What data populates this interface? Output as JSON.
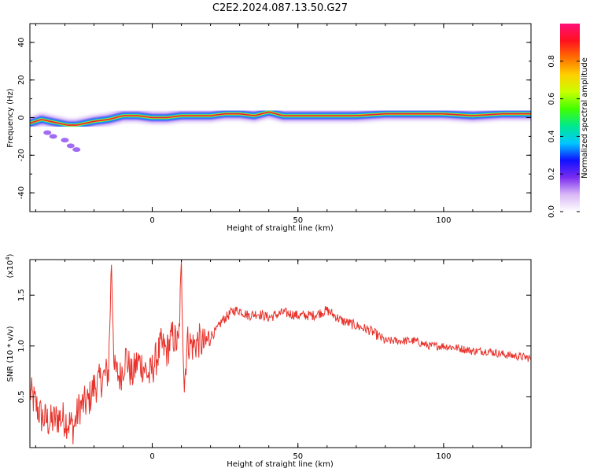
{
  "title": "C2E2.2024.087.13.50.G27",
  "colors": {
    "snr_line": "#e8322b",
    "ridge_core": "#e3203a",
    "colorbar_stops": [
      "#ffffff",
      "#d9b8f6",
      "#7a2cf0",
      "#1010ff",
      "#00c8ff",
      "#00e890",
      "#40ff00",
      "#c8ff00",
      "#ffd000",
      "#ff7000",
      "#ff1020",
      "#ff1078"
    ]
  },
  "colorbar": {
    "label": "Normalized spectral amplitude",
    "ticks": [
      "0.0",
      "0.2",
      "0.4",
      "0.6",
      "0.8"
    ]
  },
  "chart_data": [
    {
      "type": "heatmap",
      "xlabel": "Height of straight line (km)",
      "ylabel": "Frequency (Hz)",
      "xlim": [
        -42,
        130
      ],
      "ylim": [
        -50,
        50
      ],
      "xticks": [
        "0",
        "50",
        "100"
      ],
      "yticks": [
        "-40",
        "-20",
        "0",
        "20",
        "40"
      ],
      "ridge": {
        "x": [
          -42,
          -38,
          -35,
          -32,
          -29,
          -26,
          -23,
          -20,
          -15,
          -10,
          -5,
          0,
          5,
          10,
          15,
          20,
          25,
          30,
          35,
          40,
          45,
          50,
          55,
          60,
          65,
          70,
          80,
          90,
          100,
          110,
          120,
          130
        ],
        "y": [
          -3,
          -1,
          -2,
          -3,
          -4,
          -4,
          -3,
          -2,
          -1,
          1,
          1,
          0,
          0,
          1,
          1,
          1,
          2,
          2,
          1,
          3,
          1,
          1,
          1,
          1,
          1,
          1,
          2,
          2,
          2,
          1,
          2,
          2
        ]
      },
      "scatter_cluster": {
        "x": [
          -36,
          -34,
          -30,
          -28,
          -26
        ],
        "y": [
          -8,
          -10,
          -12,
          -15,
          -17
        ]
      }
    },
    {
      "type": "line",
      "xlabel": "Height of straight line (km)",
      "ylabel": "SNR (10 * v/v)",
      "y_multiplier": "(x10",
      "y_multiplier_exp": "4",
      "xlim": [
        -42,
        130
      ],
      "ylim": [
        0,
        1.85
      ],
      "xticks": [
        "0",
        "50",
        "100"
      ],
      "yticks": [
        "0.5",
        "1.0",
        "1.5"
      ],
      "y_units": "x10^4",
      "series": [
        {
          "x": [
            -42,
            -38,
            -35,
            -32,
            -30,
            -27,
            -25,
            -22,
            -20,
            -18,
            -15,
            -14,
            -13,
            -11,
            -9,
            -7,
            -5,
            -3,
            -1,
            1,
            3,
            5,
            7,
            9,
            10,
            11,
            12,
            14,
            16,
            18,
            20,
            22,
            24,
            26,
            28,
            30,
            33,
            36,
            40,
            45,
            50,
            55,
            60,
            65,
            70,
            75,
            80,
            85,
            90,
            95,
            100,
            105,
            110,
            115,
            120,
            125,
            130
          ],
          "y": [
            0.55,
            0.3,
            0.25,
            0.3,
            0.28,
            0.2,
            0.4,
            0.45,
            0.6,
            0.65,
            0.75,
            1.85,
            0.75,
            0.7,
            0.9,
            0.7,
            0.85,
            0.8,
            0.7,
            0.85,
            1.0,
            0.95,
            1.1,
            1.0,
            1.75,
            0.6,
            1.05,
            1.0,
            1.05,
            1.0,
            1.1,
            1.15,
            1.25,
            1.3,
            1.35,
            1.35,
            1.3,
            1.32,
            1.28,
            1.33,
            1.3,
            1.3,
            1.35,
            1.25,
            1.2,
            1.15,
            1.05,
            1.05,
            1.05,
            1.0,
            1.0,
            0.98,
            0.95,
            0.95,
            0.92,
            0.9,
            0.88
          ]
        }
      ]
    }
  ]
}
